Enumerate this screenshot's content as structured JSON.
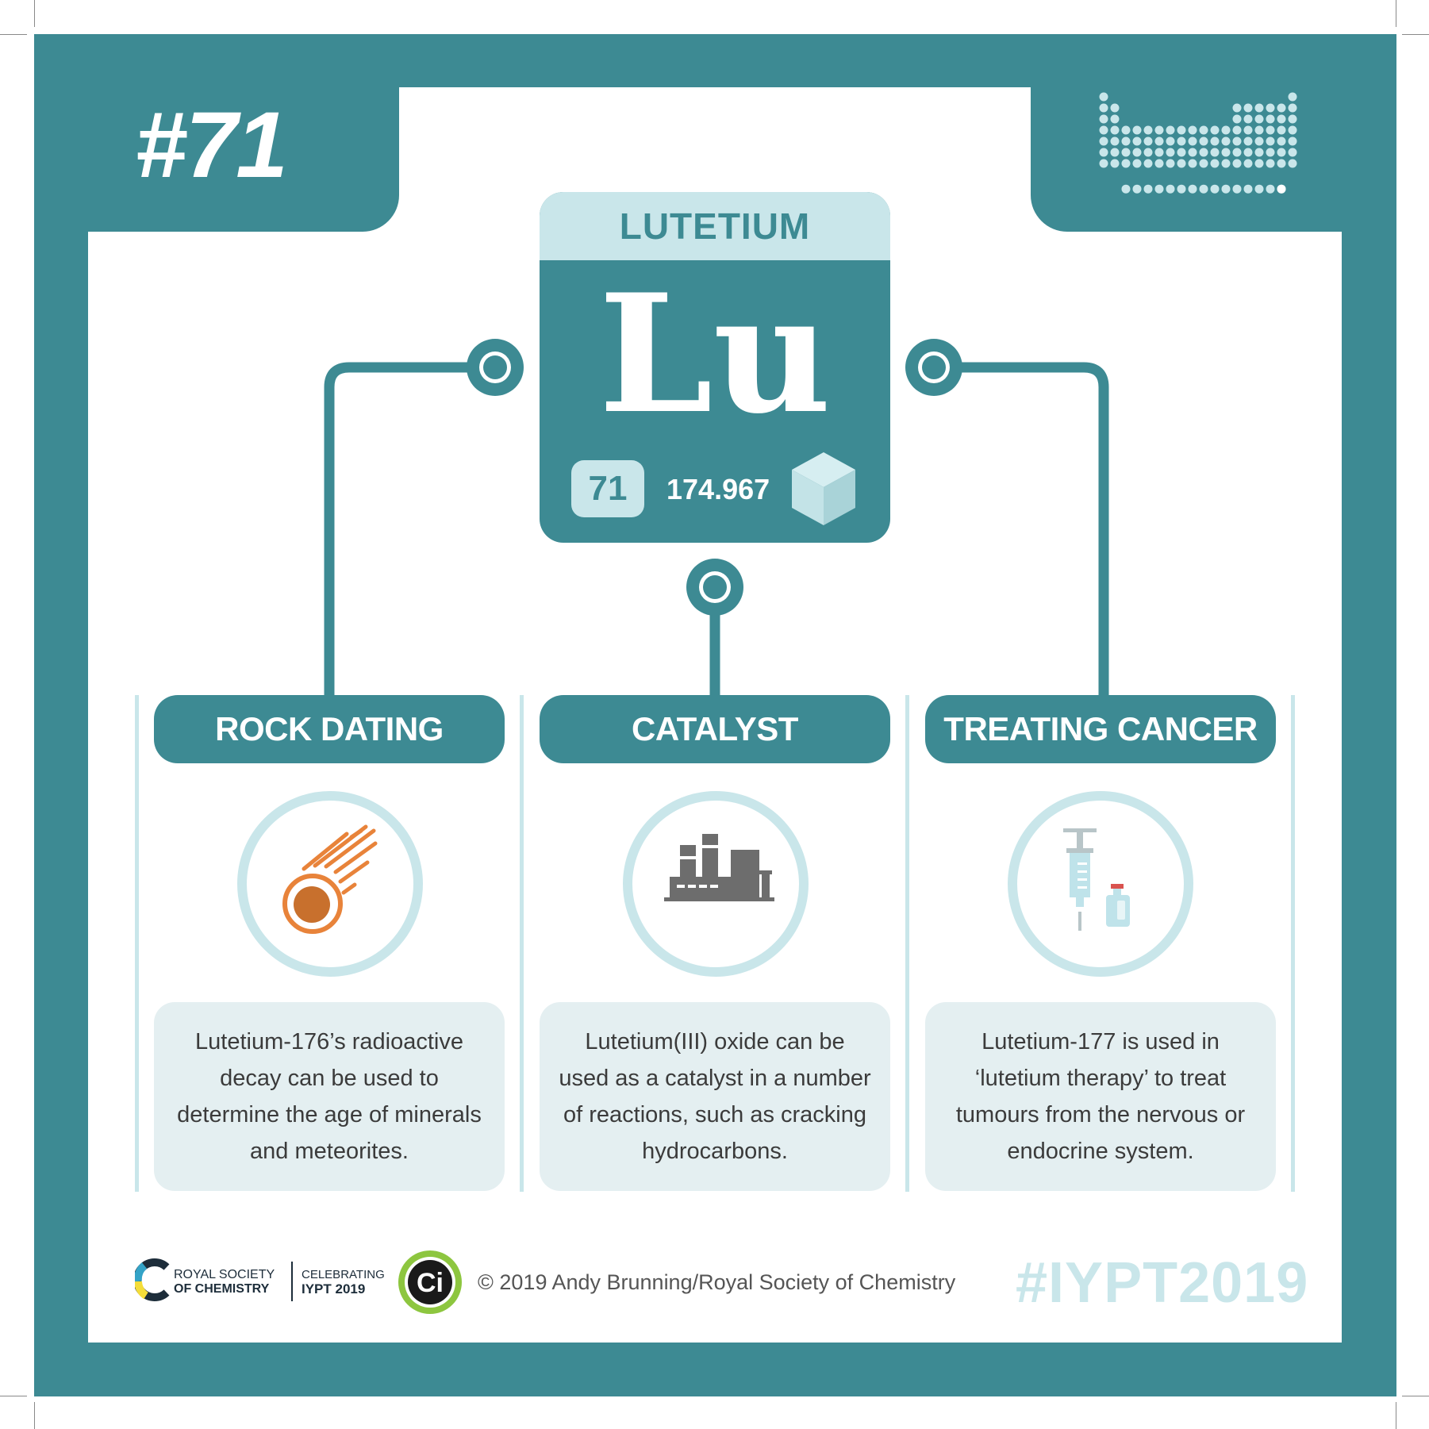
{
  "card": {
    "number": "#71",
    "element_name": "LUTETIUM",
    "symbol": "Lu",
    "atomic_number": "71",
    "atomic_mass": "174.967"
  },
  "uses": [
    {
      "title": "ROCK DATING",
      "icon": "meteor-icon",
      "description": "Lutetium-176’s radioactive decay can be used to determine the age of minerals and meteorites."
    },
    {
      "title": "CATALYST",
      "icon": "factory-icon",
      "description": "Lutetium(III) oxide can be used as a catalyst in a number of reactions, such as cracking hydrocarbons."
    },
    {
      "title": "TREATING CANCER",
      "icon": "syringe-vial-icon",
      "description": "Lutetium-177 is used in ‘lutetium therapy’ to treat tumours from the nervous or endocrine system."
    }
  ],
  "footer": {
    "rsc_line1": "ROYAL SOCIETY",
    "rsc_line2": "OF CHEMISTRY",
    "iypt_line1": "CELEBRATING",
    "iypt_line2": "IYPT 2019",
    "ci_logo": "Ci",
    "copyright": "© 2019 Andy Brunning/Royal Society of Chemistry",
    "hashtag": "#IYPT2019"
  },
  "colors": {
    "teal": "#3d8a93",
    "light_teal": "#c9e6ea",
    "pale_box": "#e4eff1",
    "meteor_orange": "#e8833a",
    "factory_grey": "#6d6d6d",
    "vial_red": "#d9534f",
    "ci_green": "#8dc63f"
  }
}
